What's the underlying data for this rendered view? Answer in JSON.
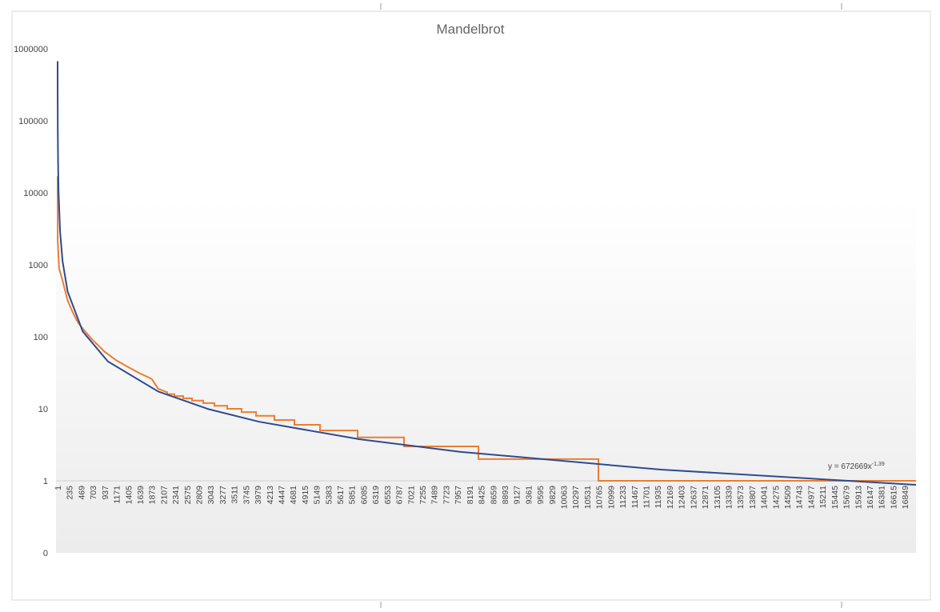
{
  "chart_data": {
    "type": "line",
    "title": "Mandelbrot",
    "log_y": true,
    "xlim": [
      1,
      17070
    ],
    "ylim": [
      0.1,
      1000000
    ],
    "x_axis_crosses_at": 1,
    "yticks": [
      {
        "value": 0.1,
        "label": "0"
      },
      1,
      10,
      100,
      1000,
      10000,
      100000,
      1000000
    ],
    "xticks": [
      1,
      235,
      469,
      703,
      937,
      1171,
      1405,
      1639,
      1873,
      2107,
      2341,
      2575,
      2809,
      3043,
      3277,
      3511,
      3745,
      3979,
      4213,
      4447,
      4681,
      4915,
      5149,
      5383,
      5617,
      5851,
      6085,
      6319,
      6553,
      6787,
      7021,
      7255,
      7489,
      7723,
      7957,
      8191,
      8425,
      8659,
      8893,
      9127,
      9361,
      9595,
      9829,
      10063,
      10297,
      10531,
      10765,
      10999,
      11233,
      11467,
      11701,
      11935,
      12169,
      12403,
      12637,
      12871,
      13105,
      13339,
      13573,
      13807,
      14041,
      14275,
      14509,
      14743,
      14977,
      15211,
      15445,
      15679,
      15913,
      16147,
      16381,
      16615,
      16849
    ],
    "series": [
      {
        "color": "#ed7d31",
        "x": [
          1,
          3,
          30,
          100,
          200,
          300,
          400,
          500,
          700,
          937,
          1171,
          1405,
          1639,
          1873,
          2000,
          2180,
          2180,
          2324,
          2324,
          2499,
          2499,
          2674,
          2674,
          2896,
          2896,
          3119,
          3119,
          3374,
          3374,
          3660,
          3660,
          3947,
          3947,
          4312,
          4312,
          4710,
          4710,
          5219,
          5219,
          5967,
          5967,
          6889,
          6889,
          8369,
          8369,
          10755,
          10755,
          17070
        ],
        "values": [
          17000,
          2200,
          900,
          600,
          320,
          220,
          160,
          130,
          90,
          62,
          47,
          38,
          31,
          26,
          19,
          17,
          16,
          16,
          15,
          15,
          14,
          14,
          13,
          13,
          12,
          12,
          11,
          11,
          10,
          10,
          9,
          9,
          8,
          8,
          7,
          7,
          6,
          6,
          5,
          5,
          4,
          4,
          3,
          3,
          2,
          2,
          1,
          1
        ]
      },
      {
        "color": "#2f4b8f",
        "x": [
          1,
          2,
          5,
          10,
          20,
          50,
          100,
          200,
          500,
          1000,
          2000,
          3000,
          4000,
          6000,
          8000,
          12000,
          17070
        ],
        "values": [
          672669,
          256650,
          71790,
          27400,
          10460,
          2925,
          1116,
          426,
          119,
          45.5,
          17.4,
          9.9,
          6.63,
          3.78,
          2.53,
          1.43,
          0.88
        ]
      }
    ],
    "trendline_label": {
      "base": "y = 672669x",
      "exponent": "-1,39"
    }
  }
}
